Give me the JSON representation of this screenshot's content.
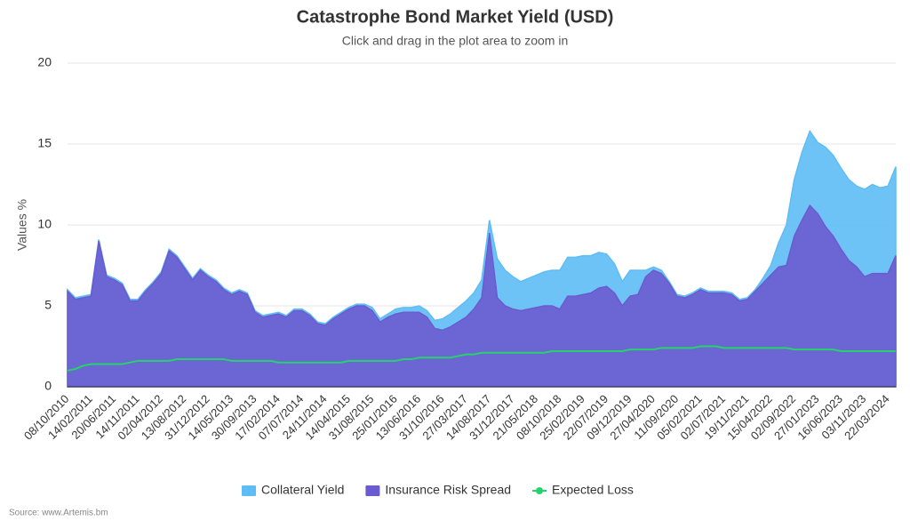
{
  "chart_data": {
    "type": "area",
    "title": "Catastrophe Bond Market Yield (USD)",
    "subtitle": "Click and drag in the plot area to zoom in",
    "y_label": "Values %",
    "source": "Source: www.Artemis.bm",
    "stacked": true,
    "grid": true,
    "legend": "bottom",
    "ylim": [
      0,
      20
    ],
    "yticks": [
      0,
      5,
      10,
      15,
      20
    ],
    "categories": [
      "08/10/2010",
      null,
      null,
      "14/02/2011",
      null,
      null,
      "20/06/2011",
      null,
      null,
      "14/11/2011",
      null,
      null,
      "02/04/2012",
      null,
      null,
      "13/08/2012",
      null,
      null,
      "31/12/2012",
      null,
      null,
      "14/05/2013",
      null,
      null,
      "30/09/2013",
      null,
      null,
      "17/02/2014",
      null,
      null,
      "07/07/2014",
      null,
      null,
      "24/11/2014",
      null,
      null,
      "14/04/2015",
      null,
      null,
      "31/08/2015",
      null,
      null,
      "25/01/2016",
      null,
      null,
      "13/06/2016",
      null,
      null,
      "31/10/2016",
      null,
      null,
      "27/03/2017",
      null,
      null,
      "14/08/2017",
      null,
      null,
      "31/12/2017",
      null,
      null,
      "21/05/2018",
      null,
      null,
      "08/10/2018",
      null,
      null,
      "25/02/2019",
      null,
      null,
      "22/07/2019",
      null,
      null,
      "09/12/2019",
      null,
      null,
      "27/04/2020",
      null,
      null,
      "11/09/2020",
      null,
      null,
      "05/02/2021",
      null,
      null,
      "02/07/2021",
      null,
      null,
      "19/11/2021",
      null,
      null,
      "15/04/2022",
      null,
      null,
      "02/09/2022",
      null,
      null,
      "27/01/2023",
      null,
      null,
      "16/06/2023",
      null,
      null,
      "03/11/2023",
      null,
      null,
      "22/03/2024",
      null
    ],
    "series": [
      {
        "name": "Collateral Yield",
        "type": "area",
        "color": "#5ebdf5",
        "values": [
          0.1,
          0.1,
          0.1,
          0.1,
          0.1,
          0.1,
          0.1,
          0.1,
          0.1,
          0.1,
          0.1,
          0.1,
          0.1,
          0.1,
          0.1,
          0.1,
          0.1,
          0.1,
          0.1,
          0.1,
          0.1,
          0.1,
          0.1,
          0.1,
          0.1,
          0.1,
          0.1,
          0.1,
          0.1,
          0.1,
          0.1,
          0.1,
          0.1,
          0.1,
          0.1,
          0.1,
          0.1,
          0.1,
          0.1,
          0.2,
          0.2,
          0.2,
          0.3,
          0.3,
          0.3,
          0.4,
          0.4,
          0.5,
          0.7,
          0.8,
          0.9,
          1.0,
          1.0,
          1.1,
          0.8,
          2.4,
          2.2,
          2.0,
          1.8,
          1.9,
          2.0,
          2.1,
          2.2,
          2.4,
          2.4,
          2.4,
          2.4,
          2.3,
          2.2,
          2.0,
          1.8,
          1.5,
          1.6,
          1.5,
          0.4,
          0.2,
          0.2,
          0.1,
          0.1,
          0.1,
          0.1,
          0.1,
          0.1,
          0.1,
          0.1,
          0.1,
          0.1,
          0.1,
          0.1,
          0.3,
          0.6,
          1.5,
          2.5,
          3.5,
          4.2,
          4.6,
          4.4,
          4.9,
          5.0,
          5.0,
          5.0,
          5.0,
          5.4,
          5.5,
          5.3,
          5.4,
          5.5
        ]
      },
      {
        "name": "Insurance Risk Spread",
        "type": "area",
        "color": "#6b5bd0",
        "values": [
          5.9,
          5.4,
          5.5,
          5.6,
          9.0,
          6.8,
          6.6,
          6.3,
          5.3,
          5.3,
          5.9,
          6.4,
          7.0,
          8.4,
          8.0,
          7.3,
          6.6,
          7.2,
          6.8,
          6.5,
          6.0,
          5.7,
          5.9,
          5.7,
          4.6,
          4.3,
          4.4,
          4.5,
          4.3,
          4.7,
          4.7,
          4.4,
          3.9,
          3.8,
          4.2,
          4.5,
          4.8,
          5.0,
          5.0,
          4.7,
          4.0,
          4.3,
          4.5,
          4.6,
          4.6,
          4.6,
          4.3,
          3.6,
          3.5,
          3.7,
          4.0,
          4.3,
          4.8,
          5.5,
          9.5,
          5.5,
          5.0,
          4.8,
          4.7,
          4.8,
          4.9,
          5.0,
          5.0,
          4.8,
          5.6,
          5.6,
          5.7,
          5.8,
          6.1,
          6.2,
          5.8,
          5.0,
          5.6,
          5.7,
          6.8,
          7.2,
          7.0,
          6.4,
          5.6,
          5.5,
          5.7,
          6.0,
          5.8,
          5.8,
          5.8,
          5.7,
          5.3,
          5.4,
          5.9,
          6.4,
          6.9,
          7.4,
          7.5,
          9.3,
          10.3,
          11.2,
          10.7,
          9.9,
          9.3,
          8.5,
          7.8,
          7.4,
          6.8,
          7.0,
          7.0,
          7.0,
          8.1
        ]
      },
      {
        "name": "Expected Loss",
        "type": "line",
        "color": "#26d36b",
        "values": [
          1.0,
          1.1,
          1.3,
          1.4,
          1.4,
          1.4,
          1.4,
          1.4,
          1.5,
          1.6,
          1.6,
          1.6,
          1.6,
          1.6,
          1.7,
          1.7,
          1.7,
          1.7,
          1.7,
          1.7,
          1.7,
          1.6,
          1.6,
          1.6,
          1.6,
          1.6,
          1.6,
          1.5,
          1.5,
          1.5,
          1.5,
          1.5,
          1.5,
          1.5,
          1.5,
          1.5,
          1.6,
          1.6,
          1.6,
          1.6,
          1.6,
          1.6,
          1.6,
          1.7,
          1.7,
          1.8,
          1.8,
          1.8,
          1.8,
          1.8,
          1.9,
          2.0,
          2.0,
          2.1,
          2.1,
          2.1,
          2.1,
          2.1,
          2.1,
          2.1,
          2.1,
          2.1,
          2.2,
          2.2,
          2.2,
          2.2,
          2.2,
          2.2,
          2.2,
          2.2,
          2.2,
          2.2,
          2.3,
          2.3,
          2.3,
          2.3,
          2.4,
          2.4,
          2.4,
          2.4,
          2.4,
          2.5,
          2.5,
          2.5,
          2.4,
          2.4,
          2.4,
          2.4,
          2.4,
          2.4,
          2.4,
          2.4,
          2.4,
          2.3,
          2.3,
          2.3,
          2.3,
          2.3,
          2.3,
          2.2,
          2.2,
          2.2,
          2.2,
          2.2,
          2.2,
          2.2,
          2.2
        ]
      }
    ]
  }
}
